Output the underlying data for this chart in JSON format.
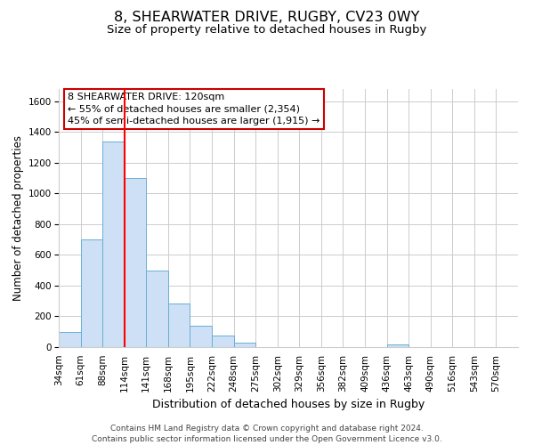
{
  "title": "8, SHEARWATER DRIVE, RUGBY, CV23 0WY",
  "subtitle": "Size of property relative to detached houses in Rugby",
  "xlabel": "Distribution of detached houses by size in Rugby",
  "ylabel": "Number of detached properties",
  "bin_labels": [
    "34sqm",
    "61sqm",
    "88sqm",
    "114sqm",
    "141sqm",
    "168sqm",
    "195sqm",
    "222sqm",
    "248sqm",
    "275sqm",
    "302sqm",
    "329sqm",
    "356sqm",
    "382sqm",
    "409sqm",
    "436sqm",
    "463sqm",
    "490sqm",
    "516sqm",
    "543sqm",
    "570sqm"
  ],
  "bar_heights": [
    100,
    700,
    1340,
    1100,
    500,
    285,
    140,
    75,
    30,
    0,
    0,
    0,
    0,
    0,
    0,
    20,
    0,
    0,
    0,
    0,
    0
  ],
  "bar_color": "#cde0f5",
  "bar_edge_color": "#6aaed6",
  "grid_color": "#cccccc",
  "background_color": "#ffffff",
  "plot_bg_color": "#ffffff",
  "annotation_text": "8 SHEARWATER DRIVE: 120sqm\n← 55% of detached houses are smaller (2,354)\n45% of semi-detached houses are larger (1,915) →",
  "annotation_box_color": "#ffffff",
  "annotation_box_edge_color": "#cc0000",
  "ylim": [
    0,
    1680
  ],
  "yticks": [
    0,
    200,
    400,
    600,
    800,
    1000,
    1200,
    1400,
    1600
  ],
  "footnote": "Contains HM Land Registry data © Crown copyright and database right 2024.\nContains public sector information licensed under the Open Government Licence v3.0.",
  "title_fontsize": 11.5,
  "subtitle_fontsize": 9.5,
  "xlabel_fontsize": 9,
  "ylabel_fontsize": 8.5,
  "annotation_fontsize": 8,
  "tick_fontsize": 7.5,
  "footnote_fontsize": 6.5
}
